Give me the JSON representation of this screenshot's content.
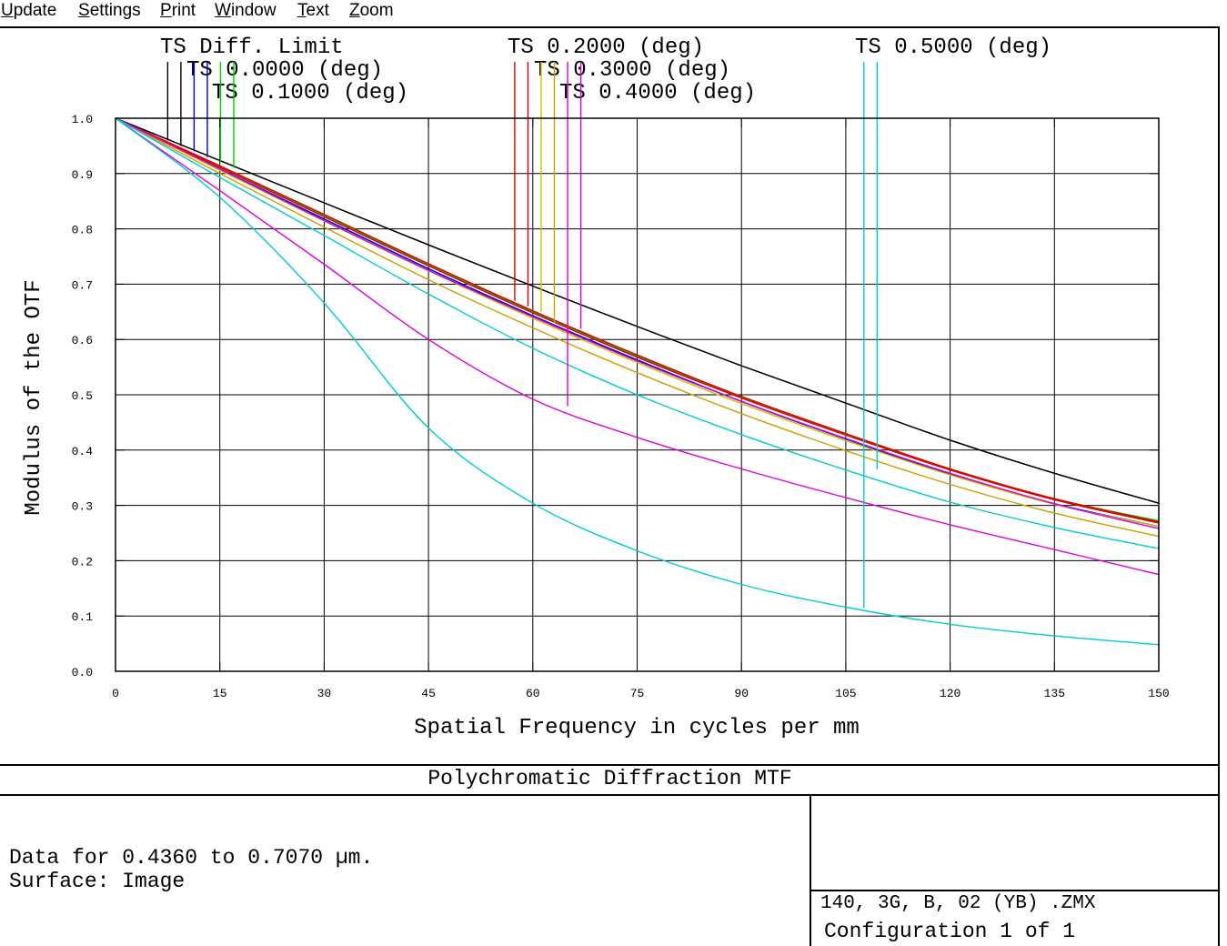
{
  "menu": [
    "Update",
    "Settings",
    "Print",
    "Window",
    "Text",
    "Zoom"
  ],
  "footer": {
    "plot_title": "Polychromatic Diffraction MTF",
    "data_line": "Data for 0.4360 to 0.7070 µm.",
    "surface_line": "Surface: Image",
    "file_name": "140, 3G, B, 02 (YB) .ZMX",
    "configuration": "Configuration 1 of 1"
  },
  "chart_data": {
    "type": "line",
    "title": "Polychromatic Diffraction MTF",
    "xlabel": "Spatial Frequency in cycles per mm",
    "ylabel": "Modulus of the OTF",
    "xlim": [
      0,
      150
    ],
    "ylim": [
      0,
      1
    ],
    "grid": true,
    "x_ticks": [
      "0",
      "15",
      "30",
      "45",
      "60",
      "75",
      "90",
      "105",
      "120",
      "135",
      "150"
    ],
    "y_ticks": [
      "0.0",
      "0.1",
      "0.2",
      "0.3",
      "0.4",
      "0.5",
      "0.6",
      "0.7",
      "0.8",
      "0.9",
      "1.0"
    ],
    "x": [
      0,
      15,
      30,
      45,
      60,
      75,
      90,
      105,
      120,
      135,
      150
    ],
    "legend": [
      {
        "label": "TS Diff. Limit",
        "markers": [
          {
            "color": "#000000",
            "x": 7.5,
            "y": 0.96
          },
          {
            "color": "#000000",
            "x": 9.4,
            "y": 0.95
          }
        ]
      },
      {
        "label": "TS 0.0000 (deg)",
        "markers": [
          {
            "color": "#0000cc",
            "x": 11.3,
            "y": 0.94
          },
          {
            "color": "#0000cc",
            "x": 13.2,
            "y": 0.93
          }
        ]
      },
      {
        "label": "TS 0.1000 (deg)",
        "markers": [
          {
            "color": "#00cc00",
            "x": 15.1,
            "y": 0.92
          },
          {
            "color": "#00cc00",
            "x": 17.0,
            "y": 0.91
          }
        ]
      },
      {
        "label": "TS 0.2000 (deg)",
        "markers": [
          {
            "color": "#dd0000",
            "x": 57.4,
            "y": 0.67
          },
          {
            "color": "#dd0000",
            "x": 59.3,
            "y": 0.66
          }
        ]
      },
      {
        "label": "TS 0.3000 (deg)",
        "markers": [
          {
            "color": "#c8c800",
            "x": 61.2,
            "y": 0.65
          },
          {
            "color": "#c8a000",
            "x": 63.1,
            "y": 0.63
          }
        ]
      },
      {
        "label": "TS 0.4000 (deg)",
        "markers": [
          {
            "color": "#dd00dd",
            "x": 65.0,
            "y": 0.48
          },
          {
            "color": "#dd00dd",
            "x": 66.9,
            "y": 0.62
          }
        ]
      },
      {
        "label": "TS 0.5000 (deg)",
        "markers": [
          {
            "color": "#00cccc",
            "x": 107.6,
            "y": 0.115
          },
          {
            "color": "#00cccc",
            "x": 109.5,
            "y": 0.365
          }
        ]
      }
    ],
    "series": [
      {
        "color": "#000000",
        "values": [
          1.0,
          0.9235,
          0.847,
          0.771,
          0.6965,
          0.6235,
          0.5525,
          0.485,
          0.418,
          0.358,
          0.304
        ]
      },
      {
        "color": "#000000",
        "values": [
          1.0,
          0.9235,
          0.847,
          0.771,
          0.6965,
          0.6235,
          0.5525,
          0.485,
          0.418,
          0.358,
          0.304
        ]
      },
      {
        "color": "#0000cc",
        "values": [
          1.0,
          0.908,
          0.818,
          0.728,
          0.643,
          0.563,
          0.488,
          0.42,
          0.357,
          0.303,
          0.262
        ]
      },
      {
        "color": "#0000cc",
        "values": [
          1.0,
          0.908,
          0.818,
          0.728,
          0.643,
          0.563,
          0.488,
          0.42,
          0.357,
          0.303,
          0.262
        ]
      },
      {
        "color": "#00cc00",
        "values": [
          1.0,
          0.912,
          0.824,
          0.735,
          0.65,
          0.57,
          0.496,
          0.429,
          0.366,
          0.312,
          0.272
        ]
      },
      {
        "color": "#00cc00",
        "values": [
          1.0,
          0.912,
          0.824,
          0.735,
          0.65,
          0.57,
          0.496,
          0.429,
          0.366,
          0.312,
          0.272
        ]
      },
      {
        "color": "#dd0000",
        "values": [
          1.0,
          0.914,
          0.826,
          0.737,
          0.652,
          0.572,
          0.497,
          0.43,
          0.366,
          0.312,
          0.27
        ]
      },
      {
        "color": "#dd0000",
        "values": [
          1.0,
          0.911,
          0.822,
          0.733,
          0.648,
          0.568,
          0.494,
          0.427,
          0.364,
          0.31,
          0.268
        ]
      },
      {
        "color": "#c8c800",
        "values": [
          1.0,
          0.906,
          0.814,
          0.724,
          0.638,
          0.558,
          0.484,
          0.417,
          0.355,
          0.302,
          0.262
        ]
      },
      {
        "color": "#c8a000",
        "values": [
          1.0,
          0.9,
          0.803,
          0.708,
          0.621,
          0.54,
          0.466,
          0.399,
          0.338,
          0.286,
          0.244
        ]
      },
      {
        "color": "#dd00dd",
        "values": [
          1.0,
          0.869,
          0.736,
          0.6,
          0.492,
          0.423,
          0.366,
          0.314,
          0.265,
          0.22,
          0.175
        ]
      },
      {
        "color": "#dd00dd",
        "values": [
          1.0,
          0.908,
          0.815,
          0.725,
          0.641,
          0.561,
          0.488,
          0.421,
          0.358,
          0.303,
          0.258
        ]
      },
      {
        "color": "#00cccc",
        "values": [
          1.0,
          0.857,
          0.666,
          0.44,
          0.304,
          0.218,
          0.157,
          0.116,
          0.085,
          0.064,
          0.048
        ]
      },
      {
        "color": "#00cccc",
        "values": [
          1.0,
          0.893,
          0.788,
          0.682,
          0.584,
          0.5,
          0.428,
          0.364,
          0.306,
          0.26,
          0.222
        ]
      }
    ]
  }
}
